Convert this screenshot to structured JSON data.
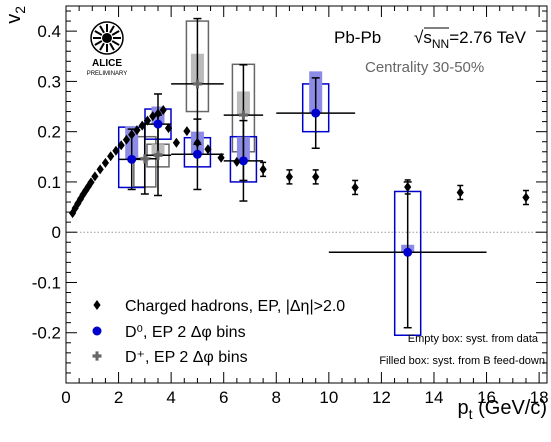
{
  "chart_data": {
    "type": "scatter",
    "logo": {
      "main": "ALICE",
      "sub": "PRELIMINARY"
    },
    "system_label": "Pb-Pb",
    "energy_label": {
      "prefix": "√s",
      "subscript": "NN",
      "suffix": "=2.76 TeV"
    },
    "centrality_label": "Centrality 30-50%",
    "xlabel": {
      "main": "p",
      "subscript": "t",
      "suffix": " (GeV/c)"
    },
    "ylabel": {
      "main": "v",
      "subscript": "2"
    },
    "xlim": [
      0,
      18.3
    ],
    "ylim": [
      -0.3,
      0.45
    ],
    "x_ticks": [
      "0",
      "2",
      "4",
      "6",
      "8",
      "10",
      "12",
      "14",
      "16",
      "18"
    ],
    "y_ticks": [
      "-0.2",
      "-0.1",
      "0",
      "0.1",
      "0.2",
      "0.3",
      "0.4"
    ],
    "legend": [
      {
        "marker": "diamond",
        "text": "Charged hadrons, EP, |Δη|>2.0"
      },
      {
        "marker": "circle",
        "text": "D⁰, EP 2 Δφ bins"
      },
      {
        "marker": "cross",
        "text": "D⁺, EP 2 Δφ bins"
      }
    ],
    "notes": {
      "empty_box": "Empty box: syst. from data",
      "filled_box": "Filled box: syst. from B feed-down"
    },
    "colors": {
      "d0": "#0000cc",
      "d0_fill": "#8c8ce6",
      "dplus": "#666666",
      "dplus_fill": "#bbbbbb",
      "charged": "#000000"
    },
    "series": [
      {
        "name": "Charged hadrons, EP, |Δη|>2.0",
        "x": [
          0.25,
          0.35,
          0.45,
          0.55,
          0.65,
          0.75,
          0.85,
          0.95,
          1.1,
          1.3,
          1.5,
          1.7,
          1.9,
          2.1,
          2.3,
          2.5,
          2.7,
          2.9,
          3.1,
          3.3,
          3.5,
          3.7,
          3.9,
          4.2,
          4.6,
          5.0,
          5.4,
          5.9,
          6.5,
          7.5,
          8.5,
          9.5,
          11.0,
          13.0,
          15.0,
          17.5
        ],
        "y": [
          0.038,
          0.048,
          0.057,
          0.066,
          0.075,
          0.083,
          0.091,
          0.099,
          0.111,
          0.125,
          0.138,
          0.151,
          0.162,
          0.173,
          0.184,
          0.194,
          0.203,
          0.212,
          0.222,
          0.231,
          0.236,
          0.243,
          0.207,
          0.178,
          0.201,
          0.178,
          0.165,
          0.148,
          0.14,
          0.125,
          0.11,
          0.11,
          0.089,
          0.09,
          0.079,
          0.069
        ]
      },
      {
        "name": "D⁰, EP 2 Δφ bins",
        "points": [
          {
            "x": 2.5,
            "y": 0.145,
            "xerr": 0.5,
            "yerr_low": 0.06,
            "yerr_high": 0.06,
            "syst_data": [
              0.089,
              0.209
            ],
            "syst_feed": [
              0.145,
              0.21
            ]
          },
          {
            "x": 3.5,
            "y": 0.215,
            "xerr": 0.5,
            "yerr_low": 0.06,
            "yerr_high": 0.06,
            "syst_data": [
              0.185,
              0.245
            ],
            "syst_feed": [
              0.215,
              0.25
            ]
          },
          {
            "x": 5.0,
            "y": 0.155,
            "xerr": 1.0,
            "yerr_low": 0.07,
            "yerr_high": 0.07,
            "syst_data": [
              0.13,
              0.188
            ],
            "syst_feed": [
              0.155,
              0.2
            ]
          },
          {
            "x": 6.75,
            "y": 0.142,
            "xerr": 0.75,
            "yerr_low": 0.08,
            "yerr_high": 0.08,
            "syst_data": [
              0.1,
              0.19
            ],
            "syst_feed": [
              0.142,
              0.19
            ]
          },
          {
            "x": 9.5,
            "y": 0.237,
            "xerr": 1.5,
            "yerr_low": 0.07,
            "yerr_high": 0.07,
            "syst_data": [
              0.2,
              0.295
            ],
            "syst_feed": [
              0.237,
              0.32
            ]
          },
          {
            "x": 13.0,
            "y": -0.04,
            "xerr": 3.0,
            "yerr_low": 0.15,
            "yerr_high": 0.14,
            "syst_data": [
              -0.205,
              0.081
            ],
            "syst_feed": [
              -0.04,
              -0.025
            ]
          }
        ]
      },
      {
        "name": "D⁺, EP 2 Δφ bins",
        "points": [
          {
            "x": 3.0,
            "y": 0.146,
            "xerr": 0.5,
            "yerr_low": 0.07,
            "yerr_high": 0.07,
            "syst_data": [
              0.09,
              0.19
            ],
            "syst_feed": [
              0.146,
              0.15
            ]
          },
          {
            "x": 3.5,
            "y": 0.153,
            "xerr": 0.5,
            "yerr_low": 0.08,
            "yerr_high": 0.08,
            "syst_data": [
              0.13,
              0.175
            ],
            "syst_feed": [
              0.153,
              0.175
            ]
          },
          {
            "x": 5.0,
            "y": 0.295,
            "xerr": 1.0,
            "yerr_low": 0.12,
            "yerr_high": 0.13,
            "syst_data": [
              0.24,
              0.42
            ],
            "syst_feed": [
              0.295,
              0.355
            ]
          },
          {
            "x": 6.75,
            "y": 0.233,
            "xerr": 0.75,
            "yerr_low": 0.13,
            "yerr_high": 0.1,
            "syst_data": [
              0.16,
              0.334
            ],
            "syst_feed": [
              0.233,
              0.28
            ]
          }
        ]
      }
    ]
  }
}
